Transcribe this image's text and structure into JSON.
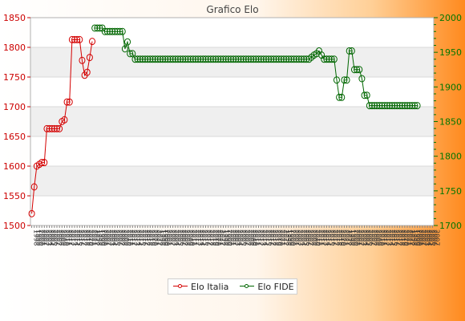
{
  "chart_data": {
    "type": "line",
    "title": "Grafico Elo",
    "xlabel": "",
    "ylabel": "",
    "y_left_range": [
      1500,
      1850
    ],
    "y_right_range": [
      1700,
      2000
    ],
    "y_left_ticks": [
      1500,
      1550,
      1600,
      1650,
      1700,
      1750,
      1800,
      1850
    ],
    "y_right_ticks": [
      1700,
      1750,
      1800,
      1850,
      1900,
      1950,
      2000
    ],
    "x_tick_count": 160,
    "x_tick_labels": [
      "1998",
      "1999",
      "2000",
      "2001",
      "2002",
      "2003",
      "2004",
      "2005",
      "2006",
      "2007",
      "2008",
      "2009",
      "2010",
      "2011",
      "2012",
      "2013",
      "2014",
      "2015",
      "2016",
      "2017",
      "2018",
      "2019",
      "2020",
      "2021",
      "2022"
    ],
    "grid": "horizontal alternating bands",
    "legend_position": "bottom-center",
    "series": [
      {
        "name": "Elo Italia",
        "axis": "left",
        "color": "#d40000",
        "points": [
          [
            0,
            1520
          ],
          [
            1,
            1565
          ],
          [
            2,
            1600
          ],
          [
            3,
            1603
          ],
          [
            4,
            1606
          ],
          [
            5,
            1606
          ],
          [
            6,
            1663
          ],
          [
            7,
            1663
          ],
          [
            8,
            1663
          ],
          [
            9,
            1663
          ],
          [
            10,
            1663
          ],
          [
            11,
            1663
          ],
          [
            12,
            1675
          ],
          [
            13,
            1678
          ],
          [
            14,
            1708
          ],
          [
            15,
            1708
          ],
          [
            16,
            1813
          ],
          [
            17,
            1813
          ],
          [
            18,
            1813
          ],
          [
            19,
            1813
          ],
          [
            20,
            1778
          ],
          [
            21,
            1753
          ],
          [
            22,
            1758
          ],
          [
            23,
            1783
          ],
          [
            24,
            1810
          ]
        ]
      },
      {
        "name": "Elo FIDE",
        "axis": "right",
        "color": "#006600",
        "points": [
          [
            25,
            1985
          ],
          [
            26,
            1985
          ],
          [
            27,
            1985
          ],
          [
            28,
            1985
          ],
          [
            29,
            1980
          ],
          [
            30,
            1980
          ],
          [
            31,
            1980
          ],
          [
            32,
            1980
          ],
          [
            33,
            1980
          ],
          [
            34,
            1980
          ],
          [
            35,
            1980
          ],
          [
            36,
            1980
          ],
          [
            37,
            1955
          ],
          [
            38,
            1965
          ],
          [
            39,
            1948
          ],
          [
            40,
            1948
          ],
          [
            41,
            1940
          ],
          [
            42,
            1940
          ],
          [
            43,
            1940
          ],
          [
            44,
            1940
          ],
          [
            45,
            1940
          ],
          [
            46,
            1940
          ],
          [
            47,
            1940
          ],
          [
            48,
            1940
          ],
          [
            49,
            1940
          ],
          [
            50,
            1940
          ],
          [
            51,
            1940
          ],
          [
            52,
            1940
          ],
          [
            53,
            1940
          ],
          [
            54,
            1940
          ],
          [
            55,
            1940
          ],
          [
            56,
            1940
          ],
          [
            57,
            1940
          ],
          [
            58,
            1940
          ],
          [
            59,
            1940
          ],
          [
            60,
            1940
          ],
          [
            61,
            1940
          ],
          [
            62,
            1940
          ],
          [
            63,
            1940
          ],
          [
            64,
            1940
          ],
          [
            65,
            1940
          ],
          [
            66,
            1940
          ],
          [
            67,
            1940
          ],
          [
            68,
            1940
          ],
          [
            69,
            1940
          ],
          [
            70,
            1940
          ],
          [
            71,
            1940
          ],
          [
            72,
            1940
          ],
          [
            73,
            1940
          ],
          [
            74,
            1940
          ],
          [
            75,
            1940
          ],
          [
            76,
            1940
          ],
          [
            77,
            1940
          ],
          [
            78,
            1940
          ],
          [
            79,
            1940
          ],
          [
            80,
            1940
          ],
          [
            81,
            1940
          ],
          [
            82,
            1940
          ],
          [
            83,
            1940
          ],
          [
            84,
            1940
          ],
          [
            85,
            1940
          ],
          [
            86,
            1940
          ],
          [
            87,
            1940
          ],
          [
            88,
            1940
          ],
          [
            89,
            1940
          ],
          [
            90,
            1940
          ],
          [
            91,
            1940
          ],
          [
            92,
            1940
          ],
          [
            93,
            1940
          ],
          [
            94,
            1940
          ],
          [
            95,
            1940
          ],
          [
            96,
            1940
          ],
          [
            97,
            1940
          ],
          [
            98,
            1940
          ],
          [
            99,
            1940
          ],
          [
            100,
            1940
          ],
          [
            101,
            1940
          ],
          [
            102,
            1940
          ],
          [
            103,
            1940
          ],
          [
            104,
            1940
          ],
          [
            105,
            1940
          ],
          [
            106,
            1940
          ],
          [
            107,
            1940
          ],
          [
            108,
            1940
          ],
          [
            109,
            1940
          ],
          [
            110,
            1940
          ],
          [
            111,
            1943
          ],
          [
            112,
            1946
          ],
          [
            113,
            1948
          ],
          [
            114,
            1952
          ],
          [
            115,
            1946
          ],
          [
            116,
            1940
          ],
          [
            117,
            1940
          ],
          [
            118,
            1940
          ],
          [
            119,
            1940
          ],
          [
            120,
            1940
          ],
          [
            121,
            1910
          ],
          [
            122,
            1885
          ],
          [
            123,
            1885
          ],
          [
            124,
            1910
          ],
          [
            125,
            1910
          ],
          [
            126,
            1952
          ],
          [
            127,
            1952
          ],
          [
            128,
            1925
          ],
          [
            129,
            1925
          ],
          [
            130,
            1925
          ],
          [
            131,
            1912
          ],
          [
            132,
            1888
          ],
          [
            133,
            1888
          ],
          [
            134,
            1873
          ],
          [
            135,
            1873
          ],
          [
            136,
            1873
          ],
          [
            137,
            1873
          ],
          [
            138,
            1873
          ],
          [
            139,
            1873
          ],
          [
            140,
            1873
          ],
          [
            141,
            1873
          ],
          [
            142,
            1873
          ],
          [
            143,
            1873
          ],
          [
            144,
            1873
          ],
          [
            145,
            1873
          ],
          [
            146,
            1873
          ],
          [
            147,
            1873
          ],
          [
            148,
            1873
          ],
          [
            149,
            1873
          ],
          [
            150,
            1873
          ],
          [
            151,
            1873
          ],
          [
            152,
            1873
          ],
          [
            153,
            1873
          ]
        ]
      }
    ]
  }
}
